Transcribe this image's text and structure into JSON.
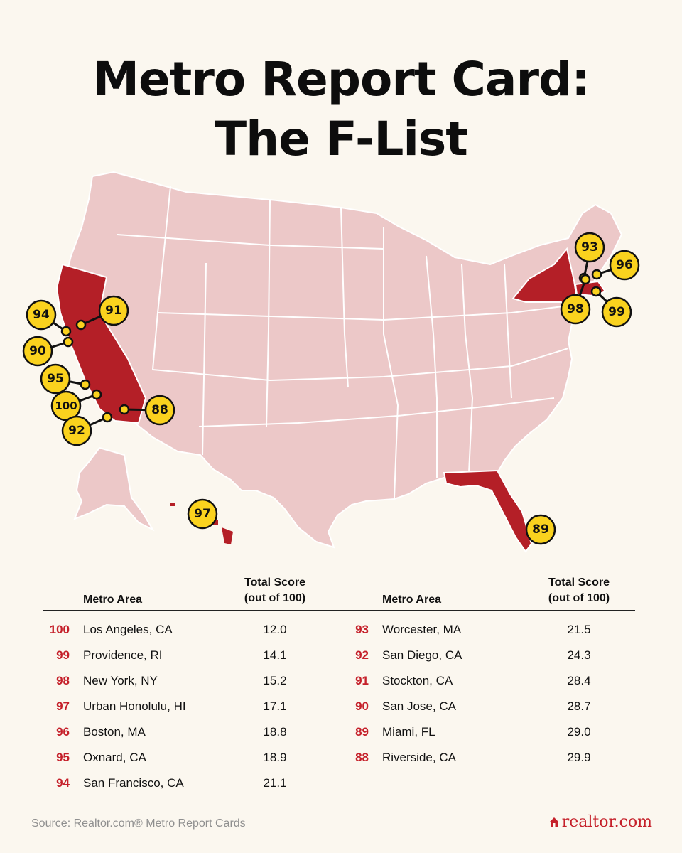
{
  "title": {
    "line1": "Metro Report Card:",
    "line2": "The F-List"
  },
  "colors": {
    "state_base": "#ecc8c8",
    "state_highlight": "#b41f27",
    "badge": "#fad21e",
    "rank": "#c5202a",
    "background": "#fbf7ef"
  },
  "highlighted_states": [
    "California",
    "New York",
    "Florida",
    "Hawaii",
    "Massachusetts",
    "Rhode Island"
  ],
  "map_badges": [
    "94",
    "91",
    "90",
    "95",
    "100",
    "92",
    "88",
    "97",
    "93",
    "96",
    "98",
    "99",
    "89"
  ],
  "table": {
    "header_area": "Metro Area",
    "header_score_line1": "Total Score",
    "header_score_line2": "(out of 100)",
    "left": [
      {
        "rank": "100",
        "city": "Los Angeles, CA",
        "score": "12.0"
      },
      {
        "rank": "99",
        "city": "Providence, RI",
        "score": "14.1"
      },
      {
        "rank": "98",
        "city": "New York, NY",
        "score": "15.2"
      },
      {
        "rank": "97",
        "city": "Urban Honolulu, HI",
        "score": "17.1"
      },
      {
        "rank": "96",
        "city": "Boston, MA",
        "score": "18.8"
      },
      {
        "rank": "95",
        "city": "Oxnard, CA",
        "score": "18.9"
      },
      {
        "rank": "94",
        "city": "San Francisco, CA",
        "score": "21.1"
      }
    ],
    "right": [
      {
        "rank": "93",
        "city": "Worcester, MA",
        "score": "21.5"
      },
      {
        "rank": "92",
        "city": "San Diego, CA",
        "score": "24.3"
      },
      {
        "rank": "91",
        "city": "Stockton, CA",
        "score": "28.4"
      },
      {
        "rank": "90",
        "city": "San Jose, CA",
        "score": "28.7"
      },
      {
        "rank": "89",
        "city": "Miami, FL",
        "score": "29.0"
      },
      {
        "rank": "88",
        "city": "Riverside, CA",
        "score": "29.9"
      }
    ]
  },
  "source": "Source: Realtor.com® Metro Report Cards",
  "logo": "realtor.com"
}
